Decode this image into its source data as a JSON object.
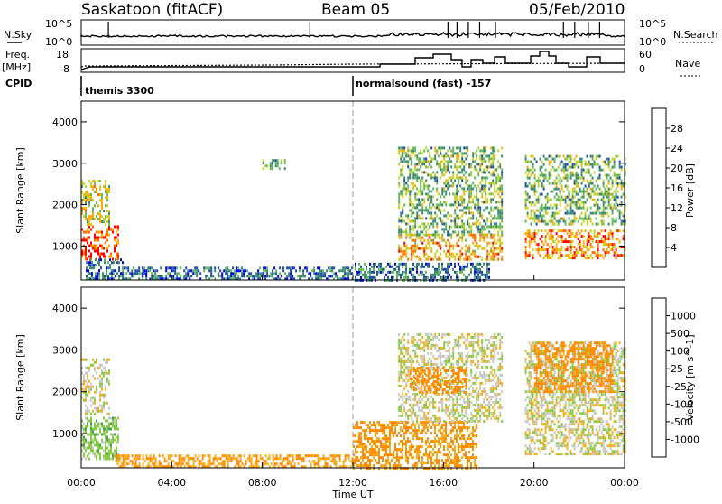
{
  "header": {
    "station": "Saskatoon (fitACF)",
    "beam": "Beam 05",
    "date": "05/Feb/2010"
  },
  "summary": {
    "nsky_label": "N.Sky",
    "nsky_ticks": [
      "10^5",
      "10^0"
    ],
    "nsearch_label": "N.Search",
    "nsearch_ticks": [
      "10^5",
      "10^0"
    ],
    "freq_label_1": "Freq.",
    "freq_label_2": "[MHz]",
    "freq_ticks": [
      "18",
      "8"
    ],
    "nave_label": "Nave",
    "nave_ticks": [
      "60",
      "0"
    ],
    "cpid_label": "CPID",
    "cpid_modes": [
      "themis 3300",
      "normalsound (fast) -157"
    ]
  },
  "axes": {
    "x_ticks": [
      "00:00",
      "04:00",
      "08:00",
      "12:00",
      "16:00",
      "20:00",
      "00:00"
    ],
    "x_label": "Time UT",
    "y_ticks": [
      "1000",
      "2000",
      "3000",
      "4000"
    ],
    "y_label": "Slant Range [km]"
  },
  "power_colorbar": {
    "label": "Power [dB]",
    "ticks": [
      "4",
      "8",
      "12",
      "16",
      "20",
      "24",
      "28"
    ],
    "colors": [
      "#0000ff",
      "#1f4faa",
      "#3d8a74",
      "#66bb55",
      "#c8d024",
      "#ffaa00",
      "#ff6a00",
      "#ff0000"
    ]
  },
  "velocity_colorbar": {
    "label": "Velocity [m s^-1]",
    "ticks": [
      "1000",
      "500",
      "100",
      "25",
      "-25",
      "-100",
      "-500",
      "-1000"
    ],
    "colors": [
      "#1d3fbb",
      "#2a7a6a",
      "#4aa050",
      "#88cc44",
      "#c8c8c4",
      "#f2b020",
      "#ff8a00",
      "#ff4400",
      "#ff0000"
    ]
  },
  "chart_data": {
    "type": "heatmap",
    "title": "Saskatoon (fitACF)",
    "xlabel": "Time UT",
    "ylabel": "Slant Range [km]",
    "xlim": [
      0,
      24
    ],
    "ylim": [
      180,
      4500
    ],
    "panels": [
      {
        "name": "Power [dB]",
        "regions": [
          {
            "t": [
              0.0,
              1.6
            ],
            "r": [
              700,
              1500
            ],
            "value": 28
          },
          {
            "t": [
              0.0,
              1.2
            ],
            "r": [
              1500,
              2600
            ],
            "value": 18
          },
          {
            "t": [
              0.2,
              1.8
            ],
            "r": [
              180,
              700
            ],
            "value": 8
          },
          {
            "t": [
              1.8,
              12.0
            ],
            "r": [
              180,
              500
            ],
            "value": 8
          },
          {
            "t": [
              8.0,
              9.0
            ],
            "r": [
              2900,
              3100
            ],
            "value": 12
          },
          {
            "t": [
              12.0,
              18.0
            ],
            "r": [
              180,
              600
            ],
            "value": 8
          },
          {
            "t": [
              14.0,
              18.6
            ],
            "r": [
              700,
              1300
            ],
            "value": 22
          },
          {
            "t": [
              14.0,
              18.6
            ],
            "r": [
              1300,
              3400
            ],
            "value": 14
          },
          {
            "t": [
              19.6,
              24.0
            ],
            "r": [
              700,
              1400
            ],
            "value": 24
          },
          {
            "t": [
              19.6,
              24.0
            ],
            "r": [
              1500,
              3200
            ],
            "value": 14
          }
        ]
      },
      {
        "name": "Velocity [m s^-1]",
        "regions": [
          {
            "t": [
              0.0,
              1.6
            ],
            "r": [
              400,
              1400
            ],
            "value": 60
          },
          {
            "t": [
              0.0,
              1.2
            ],
            "r": [
              1500,
              2800
            ],
            "value": 0
          },
          {
            "t": [
              1.5,
              12.0
            ],
            "r": [
              180,
              500
            ],
            "value": -100
          },
          {
            "t": [
              12.0,
              17.5
            ],
            "r": [
              180,
              1300
            ],
            "value": -120
          },
          {
            "t": [
              14.0,
              18.6
            ],
            "r": [
              1300,
              3400
            ],
            "value": 0
          },
          {
            "t": [
              14.5,
              17.0
            ],
            "r": [
              2000,
              2600
            ],
            "value": -300
          },
          {
            "t": [
              19.6,
              24.0
            ],
            "r": [
              500,
              3200
            ],
            "value": 0
          },
          {
            "t": [
              20.0,
              23.5
            ],
            "r": [
              2000,
              3200
            ],
            "value": -300
          }
        ]
      }
    ]
  }
}
